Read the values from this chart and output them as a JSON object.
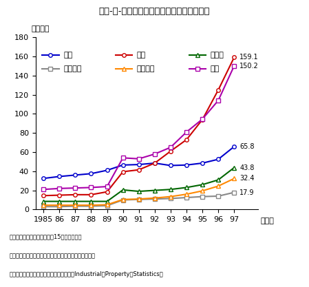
{
  "title": "第２-３-７図　主要国の特許出願件数の推移",
  "ylabel": "（万件）",
  "series": [
    {
      "name": "日本",
      "color": "#0000cc",
      "marker": "o",
      "data": [
        32.5,
        34.5,
        36.0,
        37.5,
        41.0,
        46.5,
        47.0,
        48.5,
        46.0,
        46.5,
        48.5,
        52.5,
        65.8
      ],
      "end_label": "65.8"
    },
    {
      "name": "米国",
      "color": "#cc0000",
      "marker": "o",
      "data": [
        14.5,
        15.0,
        15.5,
        15.5,
        18.5,
        39.5,
        41.5,
        48.5,
        61.0,
        73.0,
        94.0,
        125.0,
        159.1
      ],
      "end_label": "159.1"
    },
    {
      "name": "ドイツ",
      "color": "#006600",
      "marker": "^",
      "data": [
        8.5,
        8.5,
        8.5,
        8.5,
        8.5,
        20.5,
        19.0,
        20.0,
        21.0,
        23.0,
        26.0,
        31.0,
        43.8
      ],
      "end_label": "43.8"
    },
    {
      "name": "フランス",
      "color": "#888888",
      "marker": "s",
      "data": [
        3.0,
        3.0,
        3.5,
        3.5,
        4.0,
        10.0,
        10.5,
        11.0,
        11.5,
        12.5,
        13.5,
        14.0,
        17.9
      ],
      "end_label": "17.9"
    },
    {
      "name": "イギリス",
      "color": "#ff8800",
      "marker": "^",
      "data": [
        4.5,
        4.5,
        4.5,
        4.5,
        5.0,
        10.5,
        11.0,
        12.0,
        13.5,
        16.0,
        19.5,
        24.5,
        32.4
      ],
      "end_label": "32.4"
    },
    {
      "name": "ＥＵ",
      "color": "#aa00aa",
      "marker": "s",
      "data": [
        21.0,
        22.0,
        22.5,
        23.0,
        24.0,
        54.0,
        53.0,
        58.0,
        65.0,
        81.0,
        94.5,
        114.0,
        150.2
      ],
      "end_label": "150.2"
    }
  ],
  "year_labels": [
    "1985",
    "86",
    "87",
    "88",
    "89",
    "90",
    "91",
    "92",
    "93",
    "94",
    "95",
    "96",
    "97"
  ],
  "ylim": [
    0,
    180
  ],
  "yticks": [
    0,
    20,
    40,
    60,
    80,
    100,
    120,
    140,
    160,
    180
  ],
  "note1": "注）ＥＵの数値は現在の加盟15か国の合計値",
  "note2": "資料：特許庁「特許庁年報」、「特許行政年次報告書」",
  "note3": "　　　世界知的所有権機関（ＷＩＰＯ）「Industrial　Property　Statistics」",
  "legend_row1": [
    {
      "name": "日本",
      "color": "#0000cc",
      "marker": "o"
    },
    {
      "name": "米国",
      "color": "#cc0000",
      "marker": "o"
    },
    {
      "name": "ドイツ",
      "color": "#006600",
      "marker": "^"
    }
  ],
  "legend_row2": [
    {
      "name": "フランス",
      "color": "#888888",
      "marker": "s"
    },
    {
      "name": "イギリス",
      "color": "#ff8800",
      "marker": "^"
    },
    {
      "name": "ＥＵ",
      "color": "#aa00aa",
      "marker": "s"
    }
  ]
}
